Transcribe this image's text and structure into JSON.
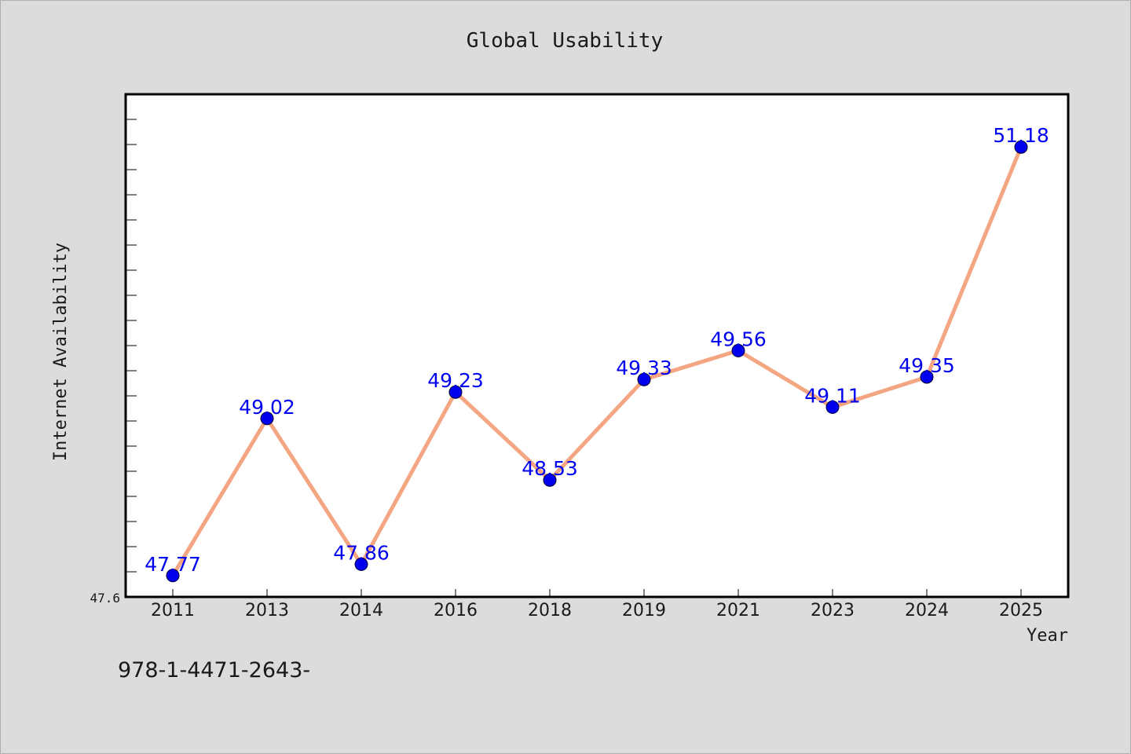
{
  "colors": {
    "background": "#dcdcdc",
    "plot_background": "#ffffff",
    "line": "#f4a582",
    "marker": "#0000ee",
    "data_label": "#0000ee",
    "frame": "#000000"
  },
  "footnote": "978-1-4471-2643-",
  "chart_data": {
    "type": "line",
    "title": "Global Usability",
    "xlabel": "Year",
    "ylabel": "Internet Availability",
    "categories": [
      "2011",
      "2013",
      "2014",
      "2016",
      "2018",
      "2019",
      "2021",
      "2023",
      "2024",
      "2025"
    ],
    "series": [
      {
        "values": [
          47.77,
          49.02,
          47.86,
          49.23,
          48.53,
          49.33,
          49.56,
          49.11,
          49.35,
          51.18
        ]
      }
    ],
    "data_labels": [
      "47.77",
      "49.02",
      "47.86",
      "49.23",
      "48.53",
      "49.33",
      "49.56",
      "49.11",
      "49.35",
      "51.18"
    ],
    "ylim": [
      47.6,
      51.6
    ],
    "y_tick_labels": [
      "47.6"
    ],
    "grid": false,
    "legend": "none",
    "marker": "circle"
  }
}
